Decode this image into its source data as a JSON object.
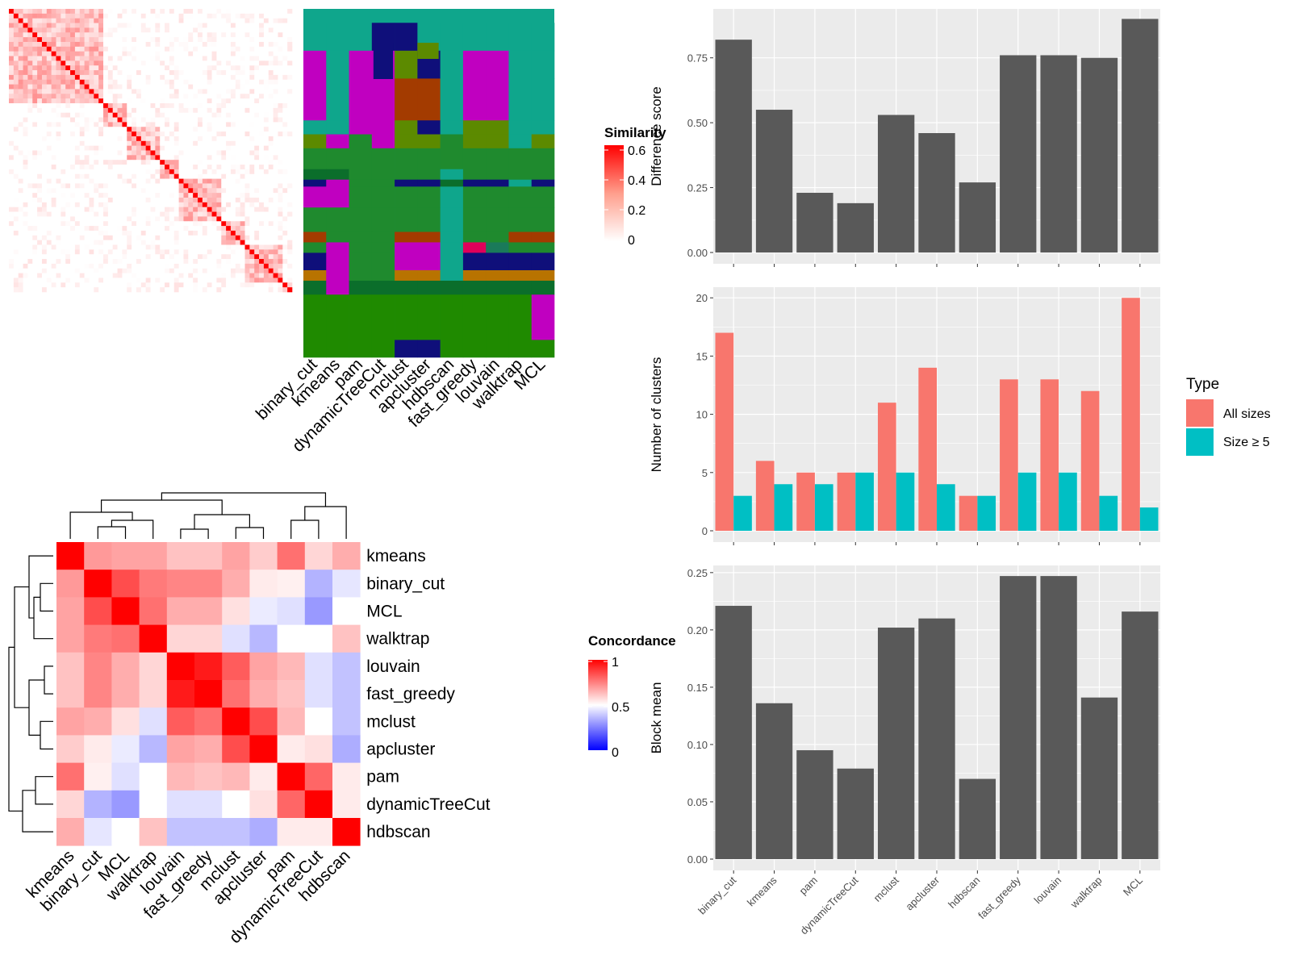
{
  "similarity_legend": {
    "title": "Similarity",
    "ticks": [
      "0.6",
      "0.4",
      "0.2",
      "0"
    ]
  },
  "concordance_legend": {
    "title": "Concordance",
    "ticks": [
      "1",
      "0.5",
      "0"
    ]
  },
  "method_labels_top": [
    "binary_cut",
    "kmeans",
    "pam",
    "dynamicTreeCut",
    "mclust",
    "apcluster",
    "hdbscan",
    "fast_greedy",
    "louvain",
    "walktrap",
    "MCL"
  ],
  "colors": {
    "panel_bg": "#ebebeb",
    "grid": "#ffffff",
    "bar_dark": "#595959",
    "all_sizes": "#f8766d",
    "size_ge5": "#00bfc4",
    "heat_red": "#ff0000",
    "heat_blue": "#0000ff"
  },
  "chart_data": [
    {
      "type": "heatmap",
      "name": "concordance",
      "rows": [
        "kmeans",
        "binary_cut",
        "MCL",
        "walktrap",
        "louvain",
        "fast_greedy",
        "mclust",
        "apcluster",
        "pam",
        "dynamicTreeCut",
        "hdbscan"
      ],
      "cols": [
        "kmeans",
        "binary_cut",
        "MCL",
        "walktrap",
        "louvain",
        "fast_greedy",
        "mclust",
        "apcluster",
        "pam",
        "dynamicTreeCut",
        "hdbscan"
      ],
      "range": [
        0,
        1
      ],
      "values": [
        [
          1.0,
          0.7,
          0.68,
          0.68,
          0.62,
          0.62,
          0.68,
          0.6,
          0.78,
          0.58,
          0.66
        ],
        [
          0.7,
          1.0,
          0.85,
          0.76,
          0.74,
          0.74,
          0.66,
          0.54,
          0.53,
          0.35,
          0.45
        ],
        [
          0.68,
          0.85,
          1.0,
          0.78,
          0.66,
          0.66,
          0.56,
          0.46,
          0.44,
          0.3,
          0.5
        ],
        [
          0.68,
          0.76,
          0.78,
          1.0,
          0.58,
          0.58,
          0.44,
          0.36,
          0.5,
          0.5,
          0.62
        ],
        [
          0.62,
          0.74,
          0.66,
          0.58,
          1.0,
          0.95,
          0.82,
          0.68,
          0.64,
          0.44,
          0.38
        ],
        [
          0.62,
          0.74,
          0.66,
          0.58,
          0.95,
          1.0,
          0.78,
          0.66,
          0.62,
          0.44,
          0.38
        ],
        [
          0.68,
          0.66,
          0.56,
          0.44,
          0.82,
          0.78,
          1.0,
          0.85,
          0.64,
          0.5,
          0.38
        ],
        [
          0.6,
          0.54,
          0.46,
          0.36,
          0.68,
          0.66,
          0.85,
          1.0,
          0.54,
          0.56,
          0.34
        ],
        [
          0.78,
          0.53,
          0.44,
          0.5,
          0.64,
          0.62,
          0.64,
          0.54,
          1.0,
          0.8,
          0.54
        ],
        [
          0.58,
          0.35,
          0.3,
          0.5,
          0.44,
          0.44,
          0.5,
          0.56,
          0.8,
          1.0,
          0.54
        ],
        [
          0.66,
          0.45,
          0.5,
          0.62,
          0.38,
          0.38,
          0.38,
          0.34,
          0.54,
          0.54,
          1.0
        ]
      ]
    },
    {
      "type": "bar",
      "categories": [
        "binary_cut",
        "kmeans",
        "pam",
        "dynamicTreeCut",
        "mclust",
        "apcluster",
        "hdbscan",
        "fast_greedy",
        "louvain",
        "walktrap",
        "MCL"
      ],
      "values": [
        0.82,
        0.55,
        0.23,
        0.19,
        0.53,
        0.46,
        0.27,
        0.76,
        0.76,
        0.75,
        0.9
      ],
      "ylabel": "Difference score",
      "ylim": [
        0,
        0.92
      ],
      "yticks": [
        "0.00",
        "0.25",
        "0.50",
        "0.75"
      ],
      "ytick_values": [
        0,
        0.25,
        0.5,
        0.75
      ],
      "grid": true
    },
    {
      "type": "bar",
      "categories": [
        "binary_cut",
        "kmeans",
        "pam",
        "dynamicTreeCut",
        "mclust",
        "apcluster",
        "hdbscan",
        "fast_greedy",
        "louvain",
        "walktrap",
        "MCL"
      ],
      "series": [
        {
          "name": "All sizes",
          "values": [
            17,
            6,
            5,
            5,
            11,
            14,
            3,
            13,
            13,
            12,
            20
          ]
        },
        {
          "name": "Size ≥ 5",
          "values": [
            3,
            4,
            4,
            5,
            5,
            4,
            3,
            5,
            5,
            3,
            2
          ]
        }
      ],
      "ylabel": "Number of clusters",
      "ylim": [
        0,
        20.5
      ],
      "yticks": [
        "0",
        "5",
        "10",
        "15",
        "20"
      ],
      "ytick_values": [
        0,
        5,
        10,
        15,
        20
      ],
      "legend_title": "Type",
      "legend": "right",
      "grid": true
    },
    {
      "type": "bar",
      "categories": [
        "binary_cut",
        "kmeans",
        "pam",
        "dynamicTreeCut",
        "mclust",
        "apcluster",
        "hdbscan",
        "fast_greedy",
        "louvain",
        "walktrap",
        "MCL"
      ],
      "values": [
        0.221,
        0.136,
        0.095,
        0.079,
        0.202,
        0.21,
        0.07,
        0.247,
        0.247,
        0.141,
        0.216
      ],
      "ylabel": "Block mean",
      "ylim": [
        0,
        0.252
      ],
      "yticks": [
        "0.00",
        "0.05",
        "0.10",
        "0.15",
        "0.20",
        "0.25"
      ],
      "ytick_values": [
        0,
        0.05,
        0.1,
        0.15,
        0.2,
        0.25
      ],
      "grid": true
    }
  ]
}
